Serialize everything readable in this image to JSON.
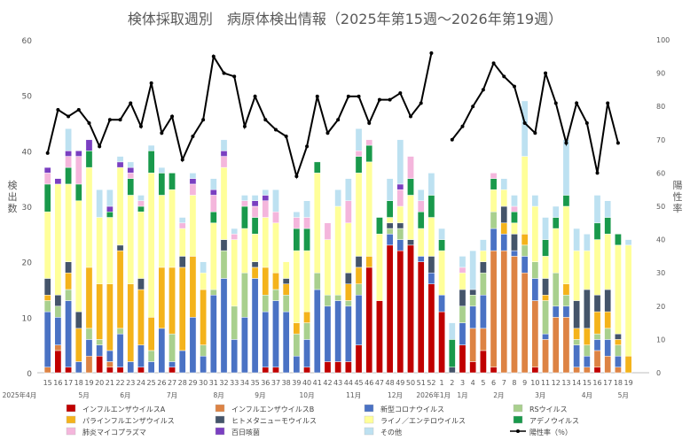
{
  "chart_data": {
    "type": "bar",
    "title": "検体採取週別　病原体検出情報（2025年第15週～2026年第19週）",
    "ylabel_left": "検出数",
    "ylabel_right": "陽性率",
    "y_ticks": [
      0,
      10,
      20,
      30,
      40,
      50,
      60
    ],
    "y2_ticks": [
      0,
      10,
      20,
      30,
      40,
      50,
      60,
      70,
      80,
      90,
      100
    ],
    "ylim": [
      0,
      60
    ],
    "y2lim": [
      0,
      100
    ],
    "legend_position": "bottom",
    "grid": false,
    "categories": [
      "15",
      "16",
      "17",
      "18",
      "19",
      "20",
      "21",
      "22",
      "23",
      "24",
      "25",
      "26",
      "27",
      "28",
      "29",
      "30",
      "31",
      "32",
      "33",
      "34",
      "35",
      "36",
      "37",
      "38",
      "39",
      "40",
      "41",
      "42",
      "43",
      "44",
      "45",
      "46",
      "47",
      "48",
      "49",
      "50",
      "51",
      "52",
      "1",
      "2",
      "3",
      "4",
      "5",
      "6",
      "7",
      "8",
      "9",
      "10",
      "11",
      "12",
      "13",
      "14",
      "15",
      "16",
      "17",
      "18",
      "19"
    ],
    "periods": [
      {
        "label": "2025年4月",
        "start": 0,
        "count": 0
      },
      {
        "label": "5月",
        "start": 2,
        "count": 4
      },
      {
        "label": "6月",
        "start": 6,
        "count": 4
      },
      {
        "label": "7月",
        "start": 10,
        "count": 5
      },
      {
        "label": "8月",
        "start": 15,
        "count": 4
      },
      {
        "label": "9月",
        "start": 19,
        "count": 4
      },
      {
        "label": "10月",
        "start": 23,
        "count": 5
      },
      {
        "label": "11月",
        "start": 28,
        "count": 4
      },
      {
        "label": "12月",
        "start": 32,
        "count": 4
      },
      {
        "label": "2026年1月",
        "start": 38,
        "count": 0
      },
      {
        "label": "1月",
        "start": 39,
        "count": 3
      },
      {
        "label": "2月",
        "start": 42,
        "count": 4
      },
      {
        "label": "3月",
        "start": 46,
        "count": 4
      },
      {
        "label": "4月",
        "start": 50,
        "count": 5
      },
      {
        "label": "5月",
        "start": 55,
        "count": 2
      }
    ],
    "series": [
      {
        "name": "インフルエンザウイルスA",
        "color": "#c00000",
        "values": [
          0,
          4,
          1,
          0,
          0,
          3,
          1,
          1,
          0,
          1,
          0,
          0,
          1,
          0,
          0,
          0,
          0,
          0,
          0,
          0,
          0,
          1,
          1,
          0,
          0,
          1,
          0,
          2,
          2,
          2,
          5,
          19,
          13,
          23,
          22,
          23,
          20,
          16,
          11,
          0,
          5,
          2,
          4,
          1,
          0,
          0,
          0,
          1,
          0,
          0,
          0,
          0,
          0,
          1,
          0,
          0,
          0
        ]
      },
      {
        "name": "インフルエンザウイルスB",
        "color": "#dd8344",
        "values": [
          1,
          1,
          0,
          0,
          3,
          0,
          1,
          0,
          0,
          0,
          0,
          0,
          0,
          0,
          0,
          0,
          0,
          0,
          0,
          0,
          0,
          0,
          0,
          0,
          0,
          0,
          0,
          0,
          0,
          0,
          0,
          0,
          0,
          0,
          0,
          0,
          0,
          0,
          0,
          0,
          0,
          6,
          4,
          21,
          22,
          21,
          18,
          12,
          6,
          10,
          10,
          1,
          1,
          3,
          3,
          1,
          0
        ]
      },
      {
        "name": "新型コロナウイルス",
        "color": "#4a72c4",
        "values": [
          10,
          5,
          12,
          2,
          3,
          2,
          2,
          6,
          2,
          4,
          2,
          8,
          1,
          4,
          10,
          3,
          14,
          17,
          6,
          10,
          17,
          10,
          12,
          11,
          3,
          5,
          15,
          10,
          11,
          10,
          9,
          0,
          0,
          2,
          2,
          0,
          1,
          2,
          3,
          0,
          4,
          4,
          6,
          4,
          3,
          1,
          3,
          4,
          1,
          2,
          2,
          4,
          2,
          2,
          3,
          2,
          0
        ]
      },
      {
        "name": "RSウイルス",
        "color": "#a9d08e",
        "values": [
          2,
          2,
          2,
          0,
          2,
          1,
          0,
          1,
          0,
          0,
          2,
          0,
          5,
          0,
          0,
          2,
          1,
          5,
          6,
          8,
          0,
          3,
          2,
          3,
          4,
          3,
          3,
          2,
          1,
          1,
          2,
          0,
          0,
          1,
          2,
          0,
          0,
          0,
          0,
          0,
          3,
          2,
          4,
          3,
          0,
          0,
          2,
          3,
          6,
          6,
          2,
          1,
          2,
          1,
          2,
          2,
          0
        ]
      },
      {
        "name": "パラインフルエンザウイルス",
        "color": "#f4b31b",
        "values": [
          1,
          0,
          3,
          6,
          11,
          10,
          12,
          14,
          14,
          10,
          6,
          11,
          12,
          15,
          11,
          10,
          0,
          0,
          0,
          0,
          2,
          5,
          3,
          2,
          2,
          2,
          0,
          0,
          0,
          3,
          3,
          2,
          0,
          0,
          0,
          0,
          0,
          0,
          0,
          0,
          0,
          0,
          0,
          0,
          2,
          0,
          2,
          0,
          1,
          0,
          2,
          2,
          3,
          4,
          3,
          1,
          3
        ]
      },
      {
        "name": "ヒトメタニューモウイルス",
        "color": "#44546a",
        "values": [
          3,
          2,
          2,
          3,
          0,
          0,
          0,
          1,
          0,
          2,
          0,
          0,
          0,
          2,
          0,
          0,
          0,
          2,
          0,
          0,
          1,
          0,
          0,
          1,
          0,
          0,
          0,
          0,
          0,
          2,
          2,
          0,
          0,
          1,
          1,
          1,
          0,
          3,
          0,
          1,
          3,
          1,
          2,
          0,
          3,
          3,
          0,
          0,
          3,
          0,
          0,
          5,
          7,
          3,
          4,
          1,
          0
        ]
      },
      {
        "name": "ライノ／エンテロウイルス",
        "color": "#ffff99",
        "values": [
          12,
          20,
          14,
          20,
          18,
          12,
          12,
          14,
          16,
          12,
          26,
          13,
          14,
          5,
          11,
          3,
          12,
          13,
          12,
          8,
          5,
          9,
          9,
          3,
          13,
          11,
          18,
          10,
          16,
          9,
          15,
          17,
          12,
          1,
          3,
          8,
          5,
          7,
          8,
          0,
          3,
          0,
          2,
          4,
          3,
          2,
          14,
          10,
          4,
          8,
          14,
          9,
          7,
          10,
          10,
          16,
          20
        ]
      },
      {
        "name": "アデノウイルス",
        "color": "#19994b",
        "values": [
          5,
          0,
          3,
          3,
          3,
          0,
          1,
          0,
          3,
          1,
          4,
          4,
          3,
          0,
          0,
          0,
          2,
          0,
          0,
          4,
          3,
          0,
          0,
          0,
          4,
          4,
          2,
          0,
          0,
          0,
          3,
          3,
          3,
          3,
          0,
          3,
          3,
          4,
          2,
          5,
          0,
          0,
          0,
          2,
          0,
          2,
          0,
          0,
          3,
          2,
          2,
          0,
          0,
          3,
          3,
          2,
          0
        ]
      },
      {
        "name": "肺炎マイコプラズマ",
        "color": "#f4b6dc",
        "values": [
          2,
          0,
          2,
          5,
          0,
          0,
          0,
          0,
          1,
          1,
          0,
          0,
          0,
          1,
          2,
          0,
          3,
          2,
          1,
          1,
          2,
          3,
          2,
          0,
          2,
          2,
          0,
          3,
          0,
          4,
          1,
          1,
          0,
          0,
          3,
          4,
          2,
          0,
          0,
          0,
          1,
          0,
          0,
          1,
          0,
          1,
          0,
          0,
          0,
          0,
          0,
          0,
          0,
          0,
          0,
          0,
          0
        ]
      },
      {
        "name": "百日咳菌",
        "color": "#7a3fc1",
        "values": [
          1,
          1,
          1,
          1,
          2,
          0,
          1,
          1,
          1,
          0,
          0,
          0,
          0,
          0,
          1,
          0,
          1,
          1,
          0,
          0,
          1,
          1,
          0,
          0,
          0,
          0,
          0,
          0,
          0,
          0,
          0,
          0,
          0,
          0,
          1,
          0,
          0,
          0,
          0,
          0,
          0,
          0,
          0,
          0,
          0,
          0,
          0,
          0,
          0,
          0,
          0,
          0,
          0,
          0,
          0,
          0,
          0
        ]
      },
      {
        "name": "その他",
        "color": "#bde1f1",
        "values": [
          0,
          0,
          4,
          0,
          0,
          5,
          3,
          1,
          1,
          1,
          1,
          1,
          0,
          1,
          1,
          2,
          2,
          2,
          1,
          1,
          1,
          1,
          4,
          0,
          1,
          3,
          0,
          0,
          3,
          4,
          4,
          0,
          0,
          4,
          8,
          0,
          2,
          4,
          2,
          3,
          2,
          7,
          2,
          0,
          2,
          2,
          10,
          2,
          4,
          2,
          10,
          4,
          3,
          5,
          3,
          0,
          1
        ]
      }
    ],
    "line": {
      "name": "陽性率（％）",
      "color": "#000000",
      "values": [
        66,
        79,
        77,
        79,
        75,
        68,
        76,
        76,
        81,
        74,
        87,
        72,
        77,
        64,
        71,
        76,
        95,
        90,
        89,
        74,
        83,
        76,
        73,
        71,
        59,
        68,
        83,
        72,
        76,
        83,
        83,
        75,
        82,
        82,
        84,
        77,
        81,
        96,
        null,
        70,
        74,
        80,
        85,
        93,
        89,
        86,
        75,
        72,
        90,
        81,
        69,
        81,
        75,
        60,
        81,
        69,
        null
      ]
    }
  }
}
